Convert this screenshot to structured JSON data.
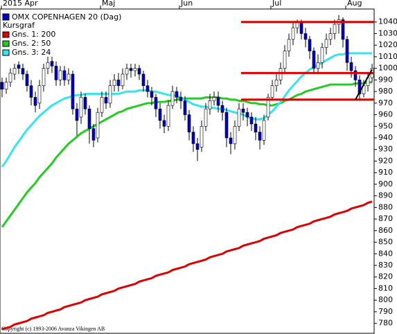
{
  "chart_data": {
    "type": "candlestick",
    "categories": [
      "2015 Apr",
      null,
      null,
      null,
      null,
      null,
      null,
      null,
      null,
      null,
      null,
      null,
      null,
      null,
      null,
      null,
      null,
      null,
      null,
      null,
      null,
      null,
      null,
      null,
      "Maj",
      null,
      null,
      null,
      null,
      null,
      null,
      null,
      null,
      null,
      null,
      null,
      null,
      null,
      null,
      null,
      null,
      null,
      null,
      "Jun",
      null,
      null,
      null,
      null,
      null,
      null,
      null,
      null,
      null,
      null,
      null,
      null,
      null,
      null,
      null,
      null,
      null,
      null,
      null,
      null,
      null,
      "Jul",
      null,
      null,
      null,
      null,
      null,
      null,
      null,
      null,
      null,
      null,
      null,
      null,
      null,
      null,
      null,
      null,
      null,
      "Aug",
      null,
      null,
      null,
      null,
      null,
      null
    ],
    "legend_heading": "Kursgraf",
    "ohlc": {
      "name": "OMX COPENHAGEN 20 (Dag)",
      "color": "#0000cc",
      "open": [
        988,
        982,
        988,
        995,
        1003,
        1000,
        995,
        985,
        975,
        970,
        985,
        1000,
        1006,
        1002,
        990,
        998,
        990,
        995,
        965,
        958,
        975,
        965,
        948,
        940,
        962,
        975,
        970,
        985,
        990,
        985,
        995,
        1000,
        998,
        1000,
        995,
        985,
        980,
        975,
        965,
        955,
        950,
        968,
        980,
        975,
        972,
        960,
        945,
        935,
        932,
        950,
        965,
        972,
        975,
        968,
        962,
        940,
        935,
        950,
        965,
        962,
        958,
        952,
        945,
        938,
        958,
        975,
        985,
        990,
        1000,
        1015,
        1025,
        1035,
        1040,
        1030,
        1025,
        1015,
        1000,
        1005,
        1018,
        1025,
        1030,
        1038,
        1042,
        1025,
        1005,
        998,
        990,
        978,
        985,
        992
      ],
      "high": [
        992,
        992,
        1000,
        1004,
        1006,
        1004,
        998,
        990,
        980,
        990,
        1004,
        1010,
        1010,
        1006,
        1002,
        1002,
        1000,
        998,
        970,
        980,
        978,
        968,
        952,
        966,
        980,
        980,
        990,
        995,
        996,
        1000,
        1004,
        1004,
        1004,
        1003,
        998,
        990,
        984,
        978,
        970,
        960,
        972,
        985,
        984,
        980,
        976,
        964,
        950,
        940,
        955,
        970,
        978,
        980,
        980,
        972,
        966,
        945,
        955,
        970,
        970,
        966,
        962,
        958,
        950,
        960,
        978,
        990,
        995,
        1005,
        1020,
        1030,
        1040,
        1042,
        1042,
        1035,
        1028,
        1018,
        1012,
        1022,
        1030,
        1035,
        1042,
        1046,
        1044,
        1028,
        1010,
        1002,
        994,
        990,
        996,
        1004
      ],
      "low": [
        975,
        978,
        984,
        990,
        995,
        990,
        980,
        968,
        962,
        965,
        980,
        995,
        996,
        985,
        985,
        985,
        986,
        960,
        942,
        952,
        960,
        935,
        932,
        936,
        958,
        965,
        966,
        980,
        980,
        982,
        990,
        992,
        993,
        990,
        980,
        975,
        968,
        958,
        948,
        944,
        946,
        965,
        970,
        965,
        955,
        938,
        928,
        920,
        928,
        946,
        960,
        968,
        962,
        955,
        932,
        926,
        930,
        946,
        955,
        950,
        946,
        938,
        930,
        934,
        955,
        972,
        980,
        986,
        996,
        1010,
        1020,
        1030,
        1025,
        1018,
        1008,
        995,
        996,
        1000,
        1012,
        1020,
        1025,
        1030,
        1018,
        998,
        992,
        984,
        972,
        975,
        980,
        988
      ],
      "close": [
        982,
        988,
        996,
        1000,
        1000,
        995,
        985,
        975,
        968,
        985,
        1000,
        1005,
        1002,
        990,
        998,
        990,
        995,
        965,
        955,
        975,
        965,
        948,
        938,
        962,
        975,
        970,
        985,
        990,
        985,
        995,
        1000,
        998,
        1000,
        995,
        985,
        980,
        975,
        965,
        955,
        950,
        968,
        980,
        975,
        972,
        960,
        945,
        935,
        930,
        950,
        965,
        972,
        975,
        968,
        962,
        940,
        935,
        950,
        965,
        962,
        958,
        952,
        945,
        938,
        955,
        975,
        985,
        990,
        1000,
        1015,
        1025,
        1035,
        1040,
        1030,
        1025,
        1015,
        1000,
        1005,
        1018,
        1025,
        1030,
        1038,
        1042,
        1025,
        1005,
        998,
        990,
        978,
        985,
        992,
        1000
      ]
    },
    "series": [
      {
        "name": "Gns. 1: 200",
        "color": "#dd0000",
        "values": [
          775,
          776,
          777,
          779,
          780,
          781,
          782,
          784,
          785,
          786,
          787,
          789,
          790,
          791,
          792,
          794,
          795,
          796,
          797,
          798,
          800,
          801,
          802,
          803,
          805,
          806,
          807,
          808,
          810,
          811,
          812,
          813,
          814,
          816,
          817,
          818,
          819,
          821,
          822,
          823,
          824,
          826,
          827,
          828,
          829,
          831,
          832,
          833,
          834,
          835,
          837,
          838,
          839,
          840,
          842,
          843,
          844,
          845,
          847,
          848,
          849,
          850,
          851,
          853,
          854,
          855,
          856,
          858,
          859,
          860,
          861,
          863,
          864,
          865,
          866,
          868,
          869,
          870,
          871,
          872,
          874,
          875,
          876,
          877,
          879,
          880,
          881,
          882,
          884,
          885
        ]
      },
      {
        "name": "Gns. 2: 50",
        "color": "#22cc22",
        "values": [
          863,
          868,
          873,
          878,
          883,
          888,
          893,
          897,
          901,
          906,
          910,
          914,
          918,
          923,
          927,
          931,
          935,
          938,
          941,
          944,
          946,
          948,
          950,
          952,
          954,
          956,
          958,
          960,
          962,
          963,
          965,
          966,
          967,
          968,
          969,
          970,
          970,
          971,
          971,
          971,
          972,
          972,
          973,
          974,
          974,
          974,
          974,
          974,
          974,
          975,
          975,
          975,
          975,
          974,
          974,
          973,
          973,
          972,
          972,
          971,
          970,
          970,
          969,
          969,
          968,
          968,
          969,
          970,
          972,
          973,
          975,
          977,
          978,
          980,
          981,
          982,
          983,
          984,
          985,
          986,
          986,
          986,
          986,
          986,
          986,
          987,
          987,
          987,
          988,
          988
        ]
      },
      {
        "name": "Gns. 3: 24",
        "color": "#33e6ee",
        "values": [
          915,
          920,
          926,
          932,
          937,
          942,
          947,
          951,
          955,
          959,
          962,
          965,
          968,
          970,
          972,
          974,
          975,
          976,
          977,
          977,
          978,
          978,
          978,
          978,
          978,
          978,
          978,
          978,
          978,
          979,
          980,
          980,
          980,
          981,
          981,
          981,
          980,
          980,
          979,
          978,
          977,
          977,
          976,
          975,
          973,
          971,
          969,
          968,
          967,
          967,
          966,
          966,
          965,
          965,
          964,
          963,
          962,
          961,
          960,
          958,
          957,
          956,
          956,
          957,
          960,
          963,
          967,
          971,
          976,
          981,
          985,
          989,
          993,
          996,
          999,
          1001,
          1003,
          1005,
          1007,
          1009,
          1011,
          1012,
          1012,
          1013,
          1013,
          1013,
          1013,
          1013,
          1013,
          1013
        ]
      }
    ],
    "annotations": {
      "hlines": [
        {
          "value": 1040,
          "from": 58,
          "to": 89
        },
        {
          "value": 996,
          "from": 58,
          "to": 89
        },
        {
          "value": 973,
          "from": 58,
          "to": 89
        }
      ],
      "trendline": {
        "from": 85,
        "to": 89,
        "start": 973,
        "end": 999
      }
    },
    "ylim": [
      772,
      1050
    ],
    "yticks": [
      780,
      790,
      800,
      810,
      820,
      830,
      840,
      850,
      860,
      870,
      880,
      890,
      900,
      910,
      920,
      930,
      940,
      950,
      960,
      970,
      980,
      990,
      1000,
      1010,
      1020,
      1030,
      1040
    ],
    "copyright": "Copyright (c) 1993-2006 Avanza Vikingen AB"
  }
}
